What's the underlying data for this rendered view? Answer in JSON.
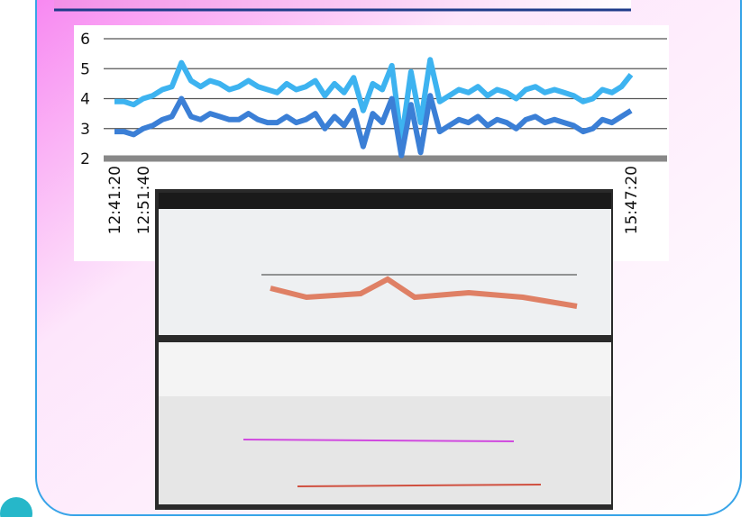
{
  "chart_data": {
    "type": "line",
    "categories": [
      "12:41:20",
      null,
      null,
      "12:51:40",
      null,
      null,
      null,
      null,
      null,
      null,
      null,
      null,
      null,
      null,
      null,
      null,
      null,
      null,
      null,
      null,
      null,
      null,
      null,
      null,
      null,
      null,
      null,
      null,
      null,
      null,
      null,
      null,
      null,
      null,
      null,
      null,
      null,
      null,
      null,
      null,
      null,
      null,
      null,
      null,
      null,
      null,
      null,
      null,
      null,
      null,
      null,
      null,
      null,
      null,
      "15:47:20"
    ],
    "series": [
      {
        "color": "#3db3f0",
        "values": [
          3.9,
          3.9,
          3.8,
          4.0,
          4.1,
          4.3,
          4.4,
          5.2,
          4.6,
          4.4,
          4.6,
          4.5,
          4.3,
          4.4,
          4.6,
          4.4,
          4.3,
          4.2,
          4.5,
          4.3,
          4.4,
          4.6,
          4.1,
          4.5,
          4.2,
          4.7,
          3.6,
          4.5,
          4.3,
          5.1,
          2.6,
          4.9,
          3.2,
          5.3,
          3.9,
          4.1,
          4.3,
          4.2,
          4.4,
          4.1,
          4.3,
          4.2,
          4.0,
          4.3,
          4.4,
          4.2,
          4.3,
          4.2,
          4.1,
          3.9,
          4.0,
          4.3,
          4.2,
          4.4,
          4.8
        ]
      },
      {
        "color": "#3b7fd6",
        "values": [
          2.9,
          2.9,
          2.8,
          3.0,
          3.1,
          3.3,
          3.4,
          4.0,
          3.4,
          3.3,
          3.5,
          3.4,
          3.3,
          3.3,
          3.5,
          3.3,
          3.2,
          3.2,
          3.4,
          3.2,
          3.3,
          3.5,
          3.0,
          3.4,
          3.1,
          3.6,
          2.4,
          3.5,
          3.2,
          4.0,
          2.1,
          3.8,
          2.2,
          4.1,
          2.9,
          3.1,
          3.3,
          3.2,
          3.4,
          3.1,
          3.3,
          3.2,
          3.0,
          3.3,
          3.4,
          3.2,
          3.3,
          3.2,
          3.1,
          2.9,
          3.0,
          3.3,
          3.2,
          3.4,
          3.6
        ]
      }
    ],
    "ylim": [
      2,
      6
    ],
    "yticks": [
      2,
      3,
      4,
      5,
      6
    ],
    "grid": true
  }
}
